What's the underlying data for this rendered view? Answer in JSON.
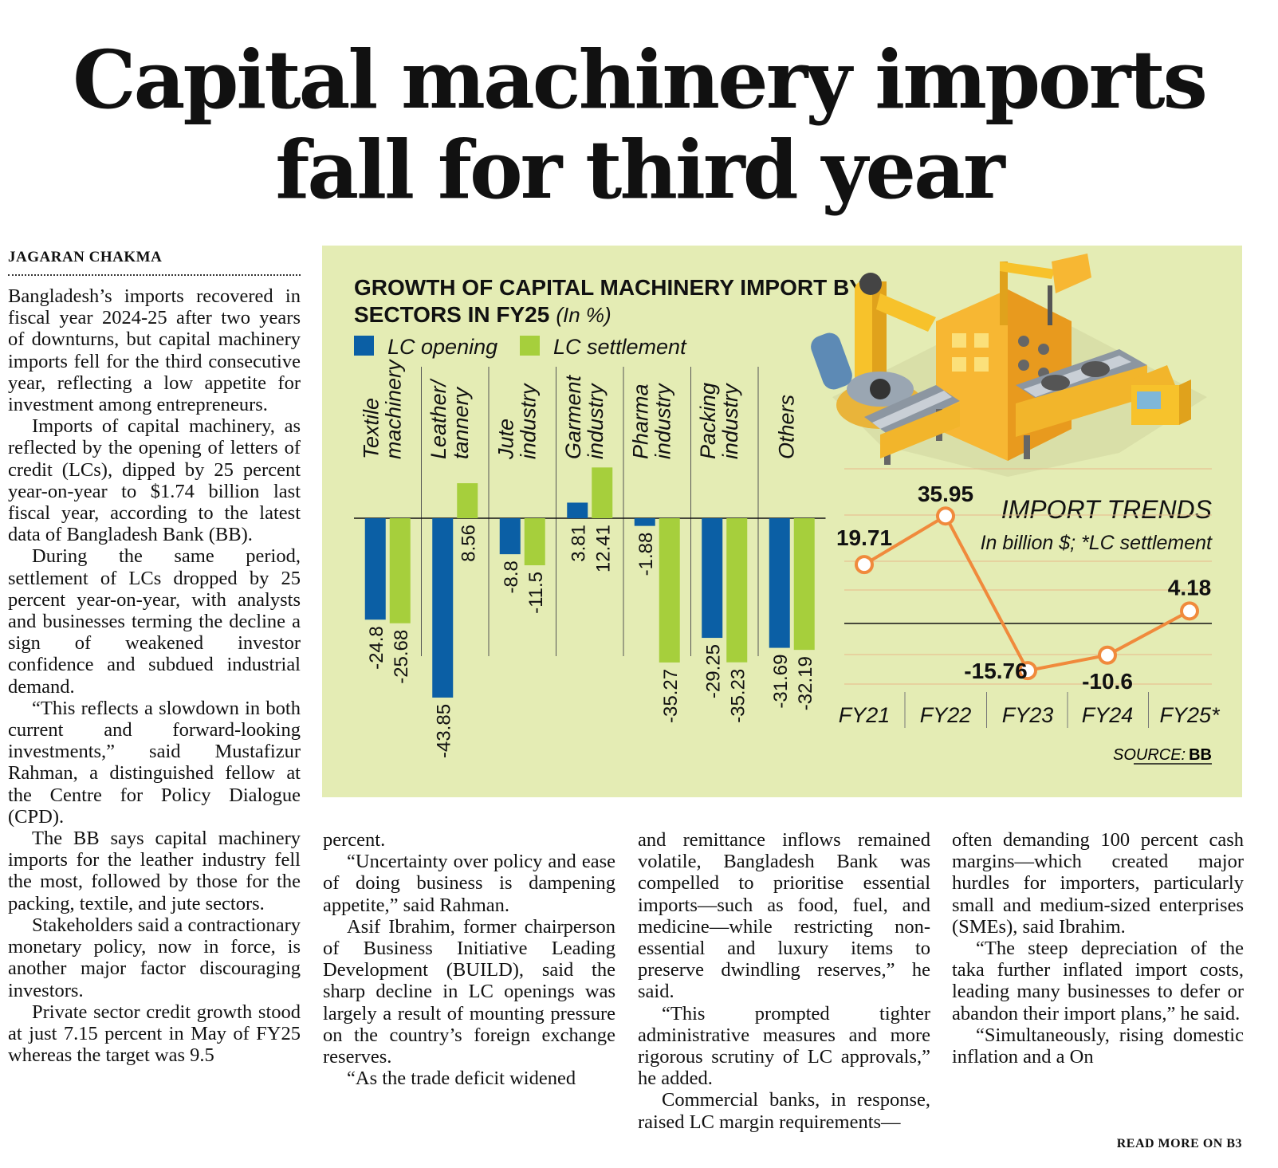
{
  "headline": {
    "line1": "Capital machinery imports",
    "line2": "fall for third year"
  },
  "byline": "JAGARAN CHAKMA",
  "article": {
    "col1": [
      "Bangladesh’s imports recovered in fiscal year 2024-25 after two years of downturns, but capital machinery imports fell for the third consecutive year, reflecting a low appetite for investment among entrepreneurs.",
      "Imports of capital machinery, as reflected by the opening of letters of credit (LCs), dipped by 25 percent year-on-year to $1.74 billion last fiscal year, according to the latest data of Bangladesh Bank (BB).",
      "During the same period, settlement of LCs dropped by 25 percent year-on-year, with analysts and businesses terming the decline a sign of weakened investor confidence and subdued industrial demand.",
      "“This reflects a slowdown in both current and forward-looking investments,” said Mustafizur Rahman, a distinguished fellow at the Centre for Policy Dialogue (CPD).",
      "The BB says capital machinery imports for the leather industry fell the most, followed by those for the packing, textile, and jute sectors.",
      "Stakeholders said a contractionary monetary policy, now in force, is another major factor discouraging investors.",
      "Private sector credit growth stood at just 7.15 percent in May of FY25 whereas the target was 9.5"
    ],
    "col2_cont": "percent.",
    "col2": [
      "“Uncertainty over policy and ease of doing business is dampening appetite,” said Rahman.",
      "Asif Ibrahim, former chairperson of Business Initiative Leading Development (BUILD), said the sharp decline in LC openings was largely a result of mounting pressure on the country’s foreign exchange reserves.",
      "“As the trade deficit widened"
    ],
    "col3_cont": "and remittance inflows remained volatile, Bangladesh Bank was compelled to prioritise essential imports—such as food, fuel, and medicine—while restricting non-essential and luxury items to preserve dwindling reserves,” he said.",
    "col3": [
      "“This prompted tighter administrative measures and more rigorous scrutiny of LC approvals,” he added.",
      "Commercial banks, in response, raised LC margin requirements—"
    ],
    "col4_cont": "often demanding 100 percent cash margins—which created major hurdles for importers, particularly small and medium-sized enterprises (SMEs), said Ibrahim.",
    "col4": [
      "“The steep depreciation of the taka further inflated import costs, leading many businesses to defer or abandon their import plans,” he said.",
      "“Simultaneously, rising domestic inflation and a"
    ],
    "col4_jump": "On",
    "read_more": "READ MORE ON B3"
  },
  "colors": {
    "lc_opening": "#0b5fa5",
    "lc_settlement": "#a6cf3c",
    "trend_line": "#f08a3c",
    "panel_bg": "#e4ecb4"
  },
  "chart_data": [
    {
      "type": "bar",
      "title_line1": "GROWTH OF CAPITAL MACHINERY IMPORT BY",
      "title_line2": "SECTORS IN FY25",
      "unit": "(In %)",
      "categories": [
        [
          "Textile",
          "machinery"
        ],
        [
          "Leather/",
          "tannery"
        ],
        [
          "Jute",
          "industry"
        ],
        [
          "Garment",
          "industry"
        ],
        [
          "Pharma",
          "industry"
        ],
        [
          "Packing",
          "industry"
        ],
        [
          "Others"
        ]
      ],
      "series": [
        {
          "name": "LC opening",
          "values": [
            -24.8,
            -43.85,
            -8.8,
            3.81,
            -1.88,
            -29.25,
            -31.69
          ]
        },
        {
          "name": "LC settlement",
          "values": [
            -25.68,
            8.56,
            -11.5,
            12.41,
            -35.27,
            -35.23,
            -32.19
          ]
        }
      ],
      "value_labels": [
        [
          "-24.8",
          "-43.85",
          "-8.8",
          "3.81",
          "-1.88",
          "-29.25",
          "-31.69"
        ],
        [
          "-25.68",
          "8.56",
          "-11.5",
          "12.41",
          "-35.27",
          "-35.23",
          "-32.19"
        ]
      ],
      "legend": "top-left",
      "grid": false
    },
    {
      "type": "line",
      "title": "IMPORT TRENDS",
      "subtitle": "In billion $; *LC settlement",
      "x": [
        "FY21",
        "FY22",
        "FY23",
        "FY24",
        "FY25*"
      ],
      "y": [
        19.71,
        35.95,
        -15.76,
        -10.6,
        4.18
      ],
      "y_labels": [
        "19.71",
        "35.95",
        "-15.76",
        "-10.6",
        "4.18"
      ],
      "grid": true
    }
  ],
  "source": {
    "label": "SOURCE:",
    "name": "BB"
  }
}
